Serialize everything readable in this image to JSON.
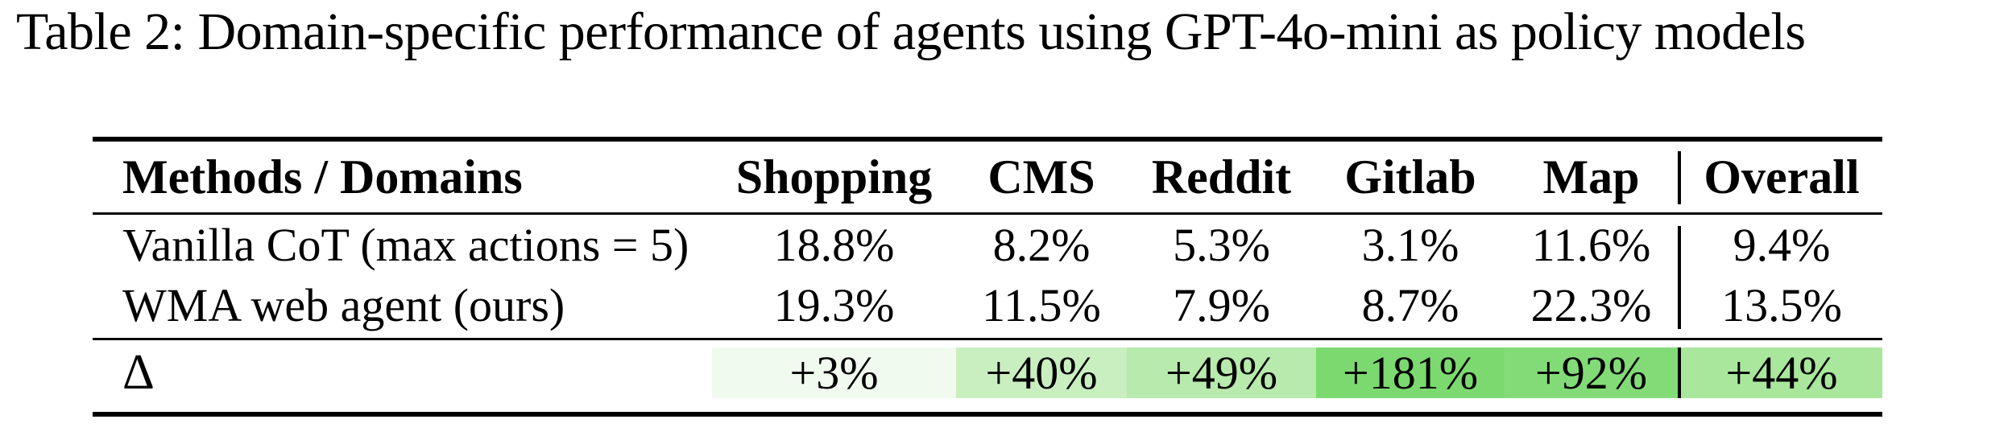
{
  "caption": "Table 2: Domain-specific performance of agents using GPT-4o-mini as policy models",
  "table": {
    "headers": [
      "Methods / Domains",
      "Shopping",
      "CMS",
      "Reddit",
      "Gitlab",
      "Map",
      "Overall"
    ],
    "rows": [
      {
        "method": "Vanilla CoT (max actions = 5)",
        "shopping": "18.8%",
        "cms": "8.2%",
        "reddit": "5.3%",
        "gitlab": "3.1%",
        "map": "11.6%",
        "overall": "9.4%"
      },
      {
        "method": "WMA web agent (ours)",
        "shopping": "19.3%",
        "cms": "11.5%",
        "reddit": "7.9%",
        "gitlab": "8.7%",
        "map": "22.3%",
        "overall": "13.5%"
      }
    ],
    "delta_row": {
      "label": "Δ",
      "cells": [
        {
          "column": "Shopping",
          "value": "+3%",
          "bg": "#f1faef"
        },
        {
          "column": "CMS",
          "value": "+40%",
          "bg": "#c9efc0"
        },
        {
          "column": "Reddit",
          "value": "+49%",
          "bg": "#b7eaac"
        },
        {
          "column": "Gitlab",
          "value": "+181%",
          "bg": "#7cd96f"
        },
        {
          "column": "Map",
          "value": "+92%",
          "bg": "#83db78"
        },
        {
          "column": "Overall",
          "value": "+44%",
          "bg": "#a9e79d"
        }
      ]
    },
    "colors": {
      "text": "#000000",
      "background": "#ffffff",
      "rule": "#000000"
    }
  }
}
